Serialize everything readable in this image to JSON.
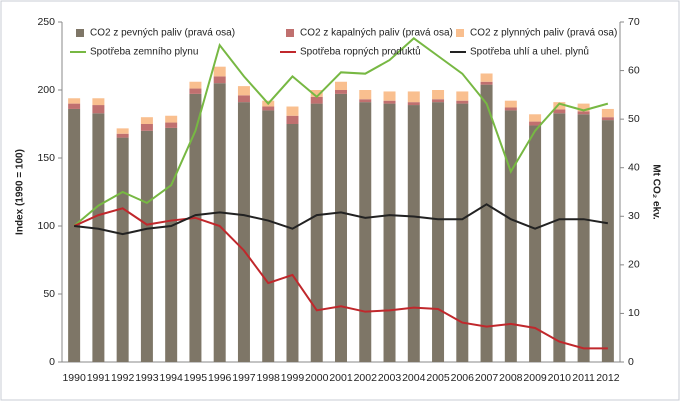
{
  "chart_data": {
    "type": "bar",
    "stacked": true,
    "categories": [
      "1990",
      "1991",
      "1992",
      "1993",
      "1994",
      "1995",
      "1996",
      "1997",
      "1998",
      "1999",
      "2000",
      "2001",
      "2002",
      "2003",
      "2004",
      "2005",
      "2006",
      "2007",
      "2008",
      "2009",
      "2010",
      "2011",
      "2012"
    ],
    "ylabel": "Index (1990 = 100)",
    "y2label": "Mt CO₂ ekv.",
    "ylim": [
      0,
      250
    ],
    "yticks": [
      0,
      50,
      100,
      150,
      200,
      250
    ],
    "y2lim": [
      0,
      70
    ],
    "y2ticks": [
      0,
      10,
      20,
      30,
      40,
      50,
      60,
      70
    ],
    "series": [
      {
        "name": "CO2 z pevných paliv (pravá osa)",
        "type": "bar",
        "axis": "y2",
        "color": "#7e7667",
        "values": [
          52.1,
          51.2,
          46.2,
          47.6,
          48.2,
          55.2,
          57.4,
          53.5,
          51.8,
          49.0,
          53.2,
          55.2,
          53.5,
          53.2,
          52.9,
          53.5,
          53.2,
          57.1,
          51.8,
          48.7,
          51.2,
          51.0,
          49.8
        ]
      },
      {
        "name": "CO2 z kapalných paliv (pravá osa)",
        "type": "bar",
        "axis": "y2",
        "color": "#c0706f",
        "values": [
          1.1,
          1.7,
          0.8,
          1.4,
          1.1,
          1.1,
          1.4,
          1.4,
          0.8,
          1.7,
          1.4,
          0.8,
          0.6,
          0.6,
          0.6,
          0.6,
          0.6,
          0.6,
          0.6,
          0.8,
          0.8,
          0.6,
          0.6
        ]
      },
      {
        "name": "CO2 z plynných paliv (pravá osa)",
        "type": "bar",
        "axis": "y2",
        "color": "#f9bf8f",
        "values": [
          1.1,
          1.4,
          1.1,
          1.4,
          1.4,
          1.4,
          2.0,
          1.9,
          1.2,
          1.9,
          1.4,
          1.7,
          1.9,
          1.9,
          2.2,
          1.9,
          1.9,
          1.7,
          1.4,
          1.5,
          1.5,
          1.6,
          1.7
        ]
      },
      {
        "name": "Spotřeba zemního plynu",
        "type": "line",
        "color": "#77b843",
        "values": [
          100,
          115,
          125,
          117,
          130,
          170,
          233,
          210,
          190,
          210,
          195,
          213,
          212,
          222,
          238,
          225,
          212,
          190,
          140,
          170,
          190,
          185,
          190
        ]
      },
      {
        "name": "Spotřeba ropných produktů",
        "type": "line",
        "color": "#c0282c",
        "values": [
          100,
          108,
          113,
          101,
          104,
          106,
          100,
          82,
          58,
          64,
          38,
          41,
          37,
          38,
          40,
          39,
          29,
          26,
          28,
          25,
          15,
          10,
          10
        ]
      },
      {
        "name": "Spotřeba uhlí a uhel. plynů",
        "type": "line",
        "color": "#222222",
        "values": [
          100,
          98,
          94,
          98,
          100,
          108,
          110,
          108,
          104,
          98,
          108,
          110,
          106,
          108,
          107,
          105,
          105,
          116,
          105,
          98,
          105,
          105,
          102
        ]
      }
    ]
  }
}
